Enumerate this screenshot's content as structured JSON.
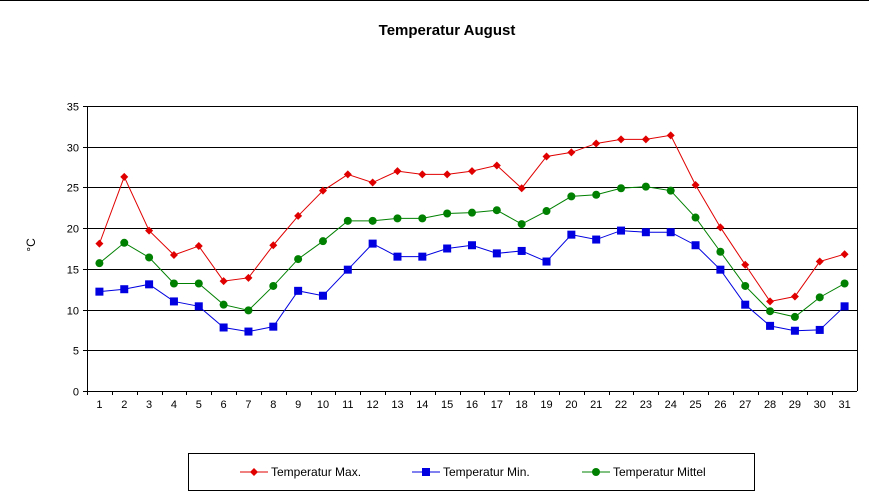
{
  "chart_data": {
    "type": "line",
    "title": "Temperatur August",
    "xlabel": "",
    "ylabel": "°C",
    "ylim": [
      0,
      35
    ],
    "yticks": [
      0,
      5,
      10,
      15,
      20,
      25,
      30,
      35
    ],
    "grid": true,
    "legend_position": "bottom",
    "x": [
      "1",
      "2",
      "3",
      "4",
      "5",
      "6",
      "7",
      "8",
      "9",
      "10",
      "11",
      "12",
      "13",
      "14",
      "15",
      "16",
      "17",
      "18",
      "19",
      "20",
      "21",
      "22",
      "23",
      "24",
      "25",
      "26",
      "27",
      "28",
      "29",
      "30",
      "31"
    ],
    "series": [
      {
        "name": "Temperatur Max.",
        "color": "#e00000",
        "marker": "diamond",
        "values": [
          18.1,
          26.3,
          19.7,
          16.7,
          17.8,
          13.5,
          13.9,
          17.9,
          21.5,
          24.6,
          26.6,
          25.6,
          27.0,
          26.6,
          26.6,
          27.0,
          27.7,
          24.9,
          28.8,
          29.3,
          30.4,
          30.9,
          30.9,
          31.4,
          25.3,
          20.1,
          15.5,
          11.0,
          11.6,
          15.9,
          16.8
        ]
      },
      {
        "name": "Temperatur Min.",
        "color": "#0000e0",
        "marker": "square",
        "values": [
          12.2,
          12.5,
          13.1,
          11.0,
          10.4,
          7.8,
          7.3,
          7.9,
          12.3,
          11.7,
          14.9,
          18.1,
          16.5,
          16.5,
          17.5,
          17.9,
          16.9,
          17.2,
          15.9,
          19.2,
          18.6,
          19.7,
          19.5,
          19.5,
          17.9,
          14.9,
          10.6,
          8.0,
          7.4,
          7.5,
          10.4
        ]
      },
      {
        "name": "Temperatur Mittel",
        "color": "#008000",
        "marker": "circle",
        "values": [
          15.7,
          18.2,
          16.4,
          13.2,
          13.2,
          10.6,
          9.9,
          12.9,
          16.2,
          18.4,
          20.9,
          20.9,
          21.2,
          21.2,
          21.8,
          21.9,
          22.2,
          20.5,
          22.1,
          23.9,
          24.1,
          24.9,
          25.1,
          24.6,
          21.3,
          17.1,
          12.9,
          9.8,
          9.1,
          11.5,
          13.2
        ]
      }
    ]
  }
}
